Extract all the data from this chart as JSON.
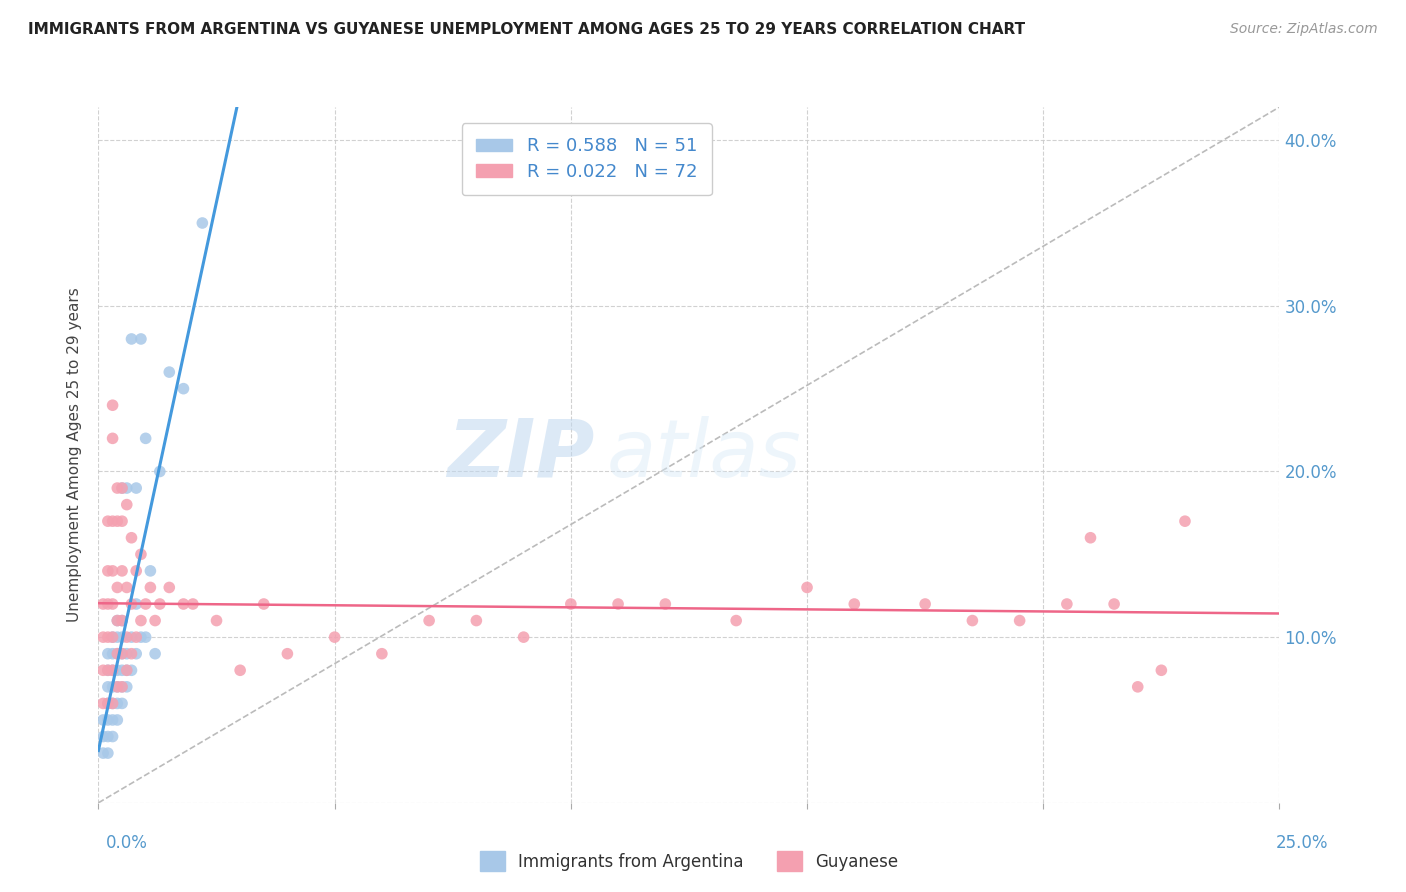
{
  "title": "IMMIGRANTS FROM ARGENTINA VS GUYANESE UNEMPLOYMENT AMONG AGES 25 TO 29 YEARS CORRELATION CHART",
  "source": "Source: ZipAtlas.com",
  "ylabel": "Unemployment Among Ages 25 to 29 years",
  "y_ticks": [
    0.0,
    0.1,
    0.2,
    0.3,
    0.4
  ],
  "y_tick_labels": [
    "",
    "10.0%",
    "20.0%",
    "30.0%",
    "40.0%"
  ],
  "xlim": [
    0.0,
    0.25
  ],
  "ylim": [
    0.0,
    0.42
  ],
  "legend_entry1": "R = 0.588   N = 51",
  "legend_entry2": "R = 0.022   N = 72",
  "legend_label1": "Immigrants from Argentina",
  "legend_label2": "Guyanese",
  "color1": "#a8c8e8",
  "color2": "#f4a0b0",
  "trendline1_color": "#4499dd",
  "trendline2_color": "#ee6688",
  "dashed_line_color": "#bbbbbb",
  "background_color": "#ffffff",
  "grid_color": "#cccccc",
  "watermark_zip": "ZIP",
  "watermark_atlas": "atlas",
  "argentina_x": [
    0.001,
    0.001,
    0.001,
    0.002,
    0.002,
    0.002,
    0.002,
    0.002,
    0.002,
    0.002,
    0.003,
    0.003,
    0.003,
    0.003,
    0.003,
    0.003,
    0.003,
    0.004,
    0.004,
    0.004,
    0.004,
    0.004,
    0.004,
    0.004,
    0.005,
    0.005,
    0.005,
    0.005,
    0.005,
    0.005,
    0.005,
    0.006,
    0.006,
    0.006,
    0.006,
    0.007,
    0.007,
    0.007,
    0.008,
    0.008,
    0.008,
    0.009,
    0.009,
    0.01,
    0.01,
    0.011,
    0.012,
    0.013,
    0.015,
    0.018,
    0.022
  ],
  "argentina_y": [
    0.03,
    0.04,
    0.05,
    0.03,
    0.04,
    0.05,
    0.06,
    0.07,
    0.08,
    0.09,
    0.04,
    0.05,
    0.06,
    0.07,
    0.08,
    0.09,
    0.1,
    0.05,
    0.06,
    0.07,
    0.08,
    0.09,
    0.1,
    0.11,
    0.06,
    0.07,
    0.08,
    0.09,
    0.1,
    0.11,
    0.19,
    0.07,
    0.08,
    0.09,
    0.19,
    0.08,
    0.1,
    0.28,
    0.09,
    0.12,
    0.19,
    0.1,
    0.28,
    0.1,
    0.22,
    0.14,
    0.09,
    0.2,
    0.26,
    0.25,
    0.35
  ],
  "guyanese_x": [
    0.001,
    0.001,
    0.001,
    0.001,
    0.002,
    0.002,
    0.002,
    0.002,
    0.002,
    0.002,
    0.003,
    0.003,
    0.003,
    0.003,
    0.003,
    0.003,
    0.003,
    0.003,
    0.004,
    0.004,
    0.004,
    0.004,
    0.004,
    0.004,
    0.005,
    0.005,
    0.005,
    0.005,
    0.005,
    0.005,
    0.006,
    0.006,
    0.006,
    0.006,
    0.007,
    0.007,
    0.007,
    0.008,
    0.008,
    0.009,
    0.009,
    0.01,
    0.011,
    0.012,
    0.013,
    0.015,
    0.018,
    0.02,
    0.025,
    0.03,
    0.035,
    0.04,
    0.05,
    0.06,
    0.07,
    0.08,
    0.09,
    0.1,
    0.11,
    0.12,
    0.135,
    0.15,
    0.16,
    0.175,
    0.185,
    0.195,
    0.205,
    0.21,
    0.215,
    0.22,
    0.225,
    0.23
  ],
  "guyanese_y": [
    0.06,
    0.08,
    0.1,
    0.12,
    0.06,
    0.08,
    0.1,
    0.12,
    0.14,
    0.17,
    0.06,
    0.08,
    0.1,
    0.12,
    0.14,
    0.17,
    0.22,
    0.24,
    0.07,
    0.09,
    0.11,
    0.13,
    0.17,
    0.19,
    0.07,
    0.09,
    0.11,
    0.14,
    0.17,
    0.19,
    0.08,
    0.1,
    0.13,
    0.18,
    0.09,
    0.12,
    0.16,
    0.1,
    0.14,
    0.11,
    0.15,
    0.12,
    0.13,
    0.11,
    0.12,
    0.13,
    0.12,
    0.12,
    0.11,
    0.08,
    0.12,
    0.09,
    0.1,
    0.09,
    0.11,
    0.11,
    0.1,
    0.12,
    0.12,
    0.12,
    0.11,
    0.13,
    0.12,
    0.12,
    0.11,
    0.11,
    0.12,
    0.16,
    0.12,
    0.07,
    0.08,
    0.17
  ]
}
